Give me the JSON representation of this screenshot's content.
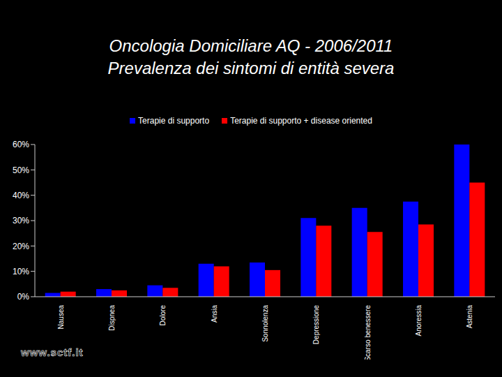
{
  "chart_data": {
    "type": "bar",
    "title": "Oncologia Domiciliare AQ - 2006/2011",
    "subtitle": "Prevalenza dei sintomi di entità severa",
    "categories": [
      "Nausea",
      "Dispnea",
      "Dolore",
      "Ansia",
      "Sonnolenza",
      "Depressione",
      "Scarso benessere",
      "Anoressia",
      "Astenia"
    ],
    "series": [
      {
        "name": "Terapie di supporto",
        "color": "#0000ff",
        "values": [
          1.5,
          3,
          4.5,
          13,
          13.5,
          31,
          35,
          37.5,
          60
        ]
      },
      {
        "name": "Terapie di supporto + disease oriented",
        "color": "#ff0000",
        "values": [
          2,
          2.5,
          3.5,
          12,
          10.5,
          28,
          25.5,
          28.5,
          45
        ]
      }
    ],
    "ylim": [
      0,
      60
    ],
    "yticks": [
      {
        "value": 0,
        "label": "0%"
      },
      {
        "value": 10,
        "label": "10%"
      },
      {
        "value": 20,
        "label": "20%"
      },
      {
        "value": 30,
        "label": "30%"
      },
      {
        "value": 40,
        "label": "40%"
      },
      {
        "value": 50,
        "label": "50%"
      },
      {
        "value": 60,
        "label": "60%"
      }
    ],
    "grid": false,
    "legend": "top",
    "annotations": [
      "www.sctf.it"
    ]
  }
}
